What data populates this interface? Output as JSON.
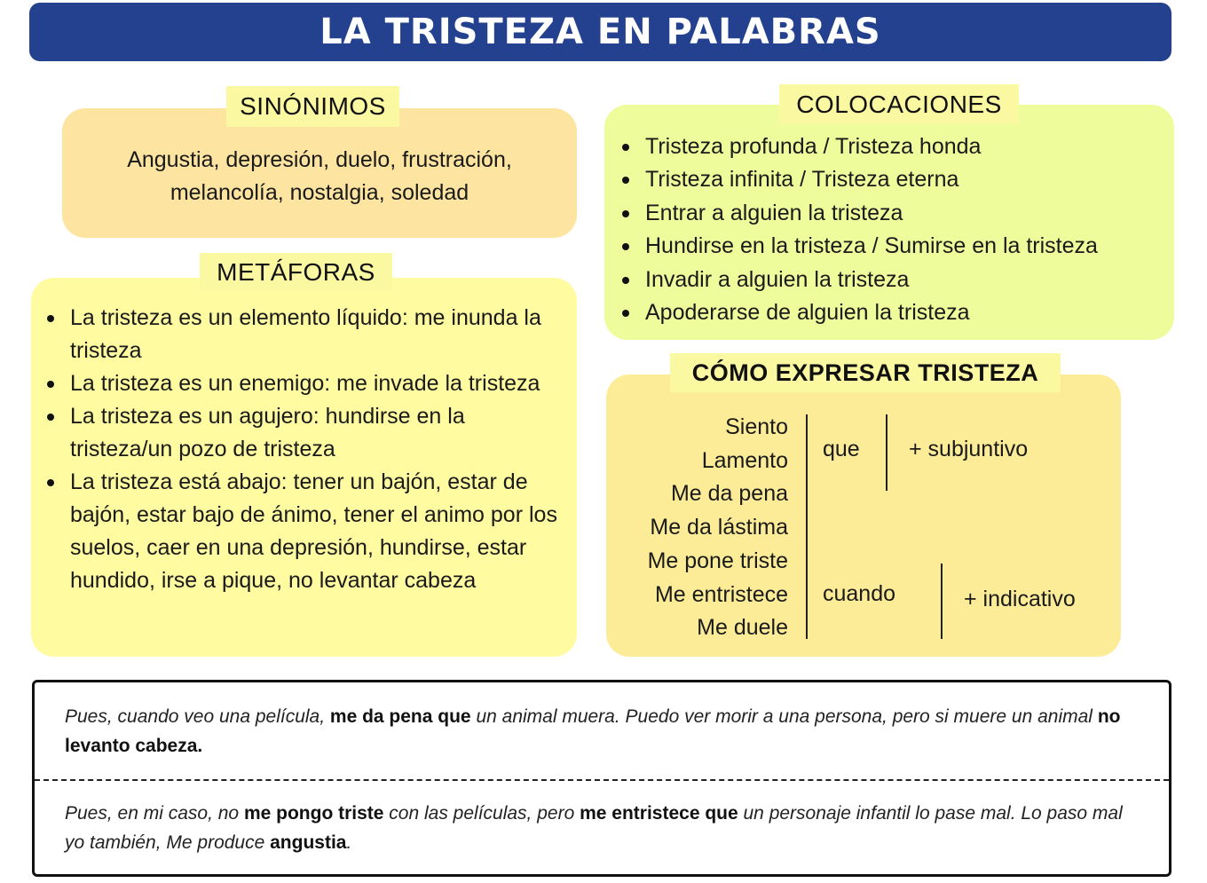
{
  "title": "LA TRISTEZA EN PALABRAS",
  "colors": {
    "header": "#24418f",
    "sinonimos_box": "#fde4a0",
    "metaforas_box": "#fefba0",
    "colocaciones_box": "#effc9b",
    "expresar_box": "#fdec97",
    "label_tab": "#fbf8a2"
  },
  "sinonimos": {
    "label": "SINÓNIMOS",
    "lines": [
      "Angustia, depresión, duelo, frustración,",
      "melancolía, nostalgia, soledad"
    ]
  },
  "metaforas": {
    "label": "METÁFORAS",
    "items": [
      "La tristeza es un elemento líquido: me inunda la tristeza",
      "La tristeza es un enemigo: me invade la tristeza",
      "La tristeza es un agujero: hundirse en la tristeza/un pozo de tristeza",
      "La tristeza está abajo: tener un bajón, estar de bajón, estar bajo de ánimo, tener el animo por los suelos, caer en una depresión, hundirse, estar hundido, irse a pique, no levantar cabeza"
    ]
  },
  "colocaciones": {
    "label": "COLOCACIONES",
    "items": [
      "Tristeza profunda / Tristeza honda",
      "Tristeza infinita / Tristeza eterna",
      "Entrar a alguien la tristeza",
      "Hundirse en la tristeza / Sumirse en la tristeza",
      "Invadir a alguien la tristeza",
      "Apoderarse de alguien la tristeza"
    ]
  },
  "expresar": {
    "label": "CÓMO EXPRESAR TRISTEZA",
    "verbs": [
      "Siento",
      "Lamento",
      "Me da pena",
      "Me da lástima",
      "Me pone triste",
      "Me entristece",
      "Me duele"
    ],
    "que": "que",
    "subjuntivo": "+ subjuntivo",
    "cuando": "cuando",
    "indicativo": "+ indicativo"
  },
  "examples": [
    [
      {
        "t": "Pues, cuando veo una película, ",
        "b": false
      },
      {
        "t": "me da pena que",
        "b": true
      },
      {
        "t": " un animal muera. Puedo ver morir a una persona, pero si muere un animal ",
        "b": false
      },
      {
        "t": "no levanto cabeza.",
        "b": true
      }
    ],
    [
      {
        "t": "Pues, en mi caso, no ",
        "b": false
      },
      {
        "t": "me pongo triste",
        "b": true
      },
      {
        "t": " con las películas, pero ",
        "b": false
      },
      {
        "t": "me entristece que",
        "b": true
      },
      {
        "t": " un personaje infantil lo pase mal. Lo paso mal yo también, Me produce ",
        "b": false
      },
      {
        "t": "angustia",
        "b": true
      },
      {
        "t": ".",
        "b": false
      }
    ]
  ]
}
